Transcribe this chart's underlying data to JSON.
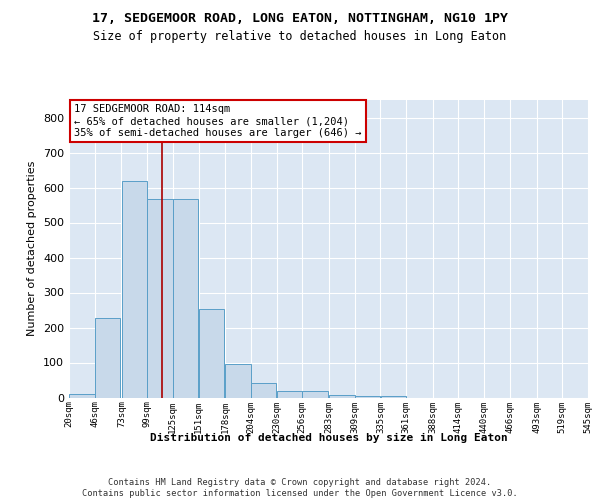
{
  "title": "17, SEDGEMOOR ROAD, LONG EATON, NOTTINGHAM, NG10 1PY",
  "subtitle": "Size of property relative to detached houses in Long Eaton",
  "xlabel": "Distribution of detached houses by size in Long Eaton",
  "ylabel": "Number of detached properties",
  "bar_color": "#c8d9ea",
  "bar_edge_color": "#5a9fc8",
  "background_color": "#dce7f3",
  "grid_color": "#ffffff",
  "annotation_box_edge_color": "#cc0000",
  "annotation_text": "17 SEDGEMOOR ROAD: 114sqm\n← 65% of detached houses are smaller (1,204)\n35% of semi-detached houses are larger (646) →",
  "property_size": 114,
  "vline_color": "#aa0000",
  "footer": "Contains HM Land Registry data © Crown copyright and database right 2024.\nContains public sector information licensed under the Open Government Licence v3.0.",
  "bins": [
    20,
    46,
    73,
    99,
    125,
    151,
    178,
    204,
    230,
    256,
    283,
    309,
    335,
    361,
    388,
    414,
    440,
    466,
    493,
    519,
    545
  ],
  "values": [
    10,
    228,
    618,
    568,
    568,
    253,
    95,
    42,
    20,
    20,
    8,
    5,
    5,
    0,
    0,
    0,
    0,
    0,
    0,
    0
  ],
  "ylim": [
    0,
    850
  ],
  "yticks": [
    0,
    100,
    200,
    300,
    400,
    500,
    600,
    700,
    800
  ]
}
